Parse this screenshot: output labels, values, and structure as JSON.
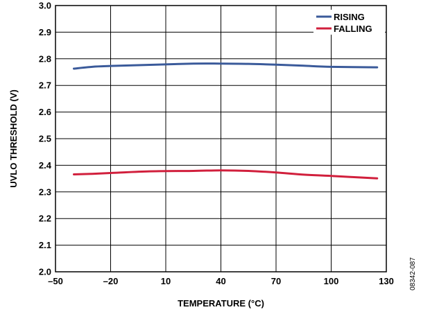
{
  "chart_data": {
    "type": "line",
    "xlabel": "TEMPERATURE (°C)",
    "ylabel": "UVLO THRESHOLD (V)",
    "xlim": [
      -50,
      130
    ],
    "ylim": [
      2.0,
      3.0
    ],
    "xticks": [
      -50,
      -20,
      10,
      40,
      70,
      100,
      130
    ],
    "xtick_labels": [
      "–50",
      "–20",
      "10",
      "40",
      "70",
      "100",
      "130"
    ],
    "yticks": [
      2.0,
      2.1,
      2.2,
      2.3,
      2.4,
      2.5,
      2.6,
      2.7,
      2.8,
      2.9,
      3.0
    ],
    "ytick_labels": [
      "2.0",
      "2.1",
      "2.2",
      "2.3",
      "2.4",
      "2.5",
      "2.6",
      "2.7",
      "2.8",
      "2.9",
      "3.0"
    ],
    "grid": true,
    "legend_position": "top-right",
    "series": [
      {
        "name": "RISING",
        "color": "#3a5a9a",
        "x": [
          -40,
          -30,
          -20,
          0,
          25,
          40,
          55,
          70,
          85,
          100,
          125
        ],
        "y": [
          2.763,
          2.77,
          2.773,
          2.777,
          2.782,
          2.782,
          2.781,
          2.778,
          2.774,
          2.77,
          2.768
        ]
      },
      {
        "name": "FALLING",
        "color": "#d11f3c",
        "x": [
          -40,
          -30,
          -20,
          0,
          25,
          40,
          55,
          70,
          85,
          100,
          125
        ],
        "y": [
          2.366,
          2.368,
          2.371,
          2.377,
          2.379,
          2.381,
          2.379,
          2.373,
          2.365,
          2.36,
          2.351
        ]
      }
    ]
  },
  "figure_id": "08342-087"
}
